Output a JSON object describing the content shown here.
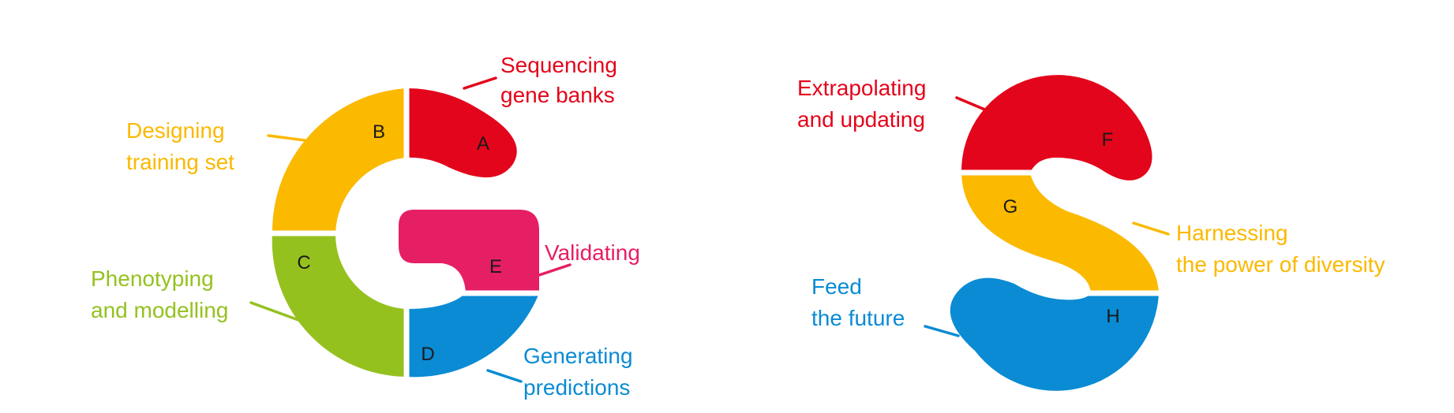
{
  "colors": {
    "red": "#e3051b",
    "orange": "#fbb900",
    "green": "#95c11f",
    "blue": "#0a8bd4",
    "pink": "#e61e64"
  },
  "segments": {
    "A": {
      "letter": "A",
      "label_line1": "Sequencing",
      "label_line2": "gene banks",
      "color": "red"
    },
    "B": {
      "letter": "B",
      "label_line1": "Designing",
      "label_line2": "training set",
      "color": "orange"
    },
    "C": {
      "letter": "C",
      "label_line1": "Phenotyping",
      "label_line2": "and modelling",
      "color": "green"
    },
    "D": {
      "letter": "D",
      "label_line1": "Generating",
      "label_line2": "predictions",
      "color": "blue"
    },
    "E": {
      "letter": "E",
      "label_line1": "Validating",
      "color": "pink"
    },
    "F": {
      "letter": "F",
      "label_line1": "Extrapolating",
      "label_line2": "and updating",
      "color": "red"
    },
    "G": {
      "letter": "G",
      "label_line1": "Harnessing",
      "label_line2": "the power of diversity",
      "color": "orange"
    },
    "H": {
      "letter": "H",
      "label_line1": "Feed",
      "label_line2": "the future",
      "color": "blue"
    }
  }
}
